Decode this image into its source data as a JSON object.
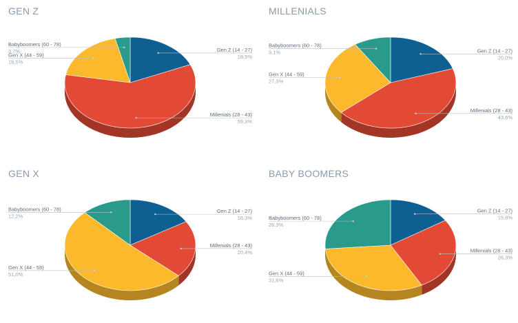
{
  "colors": {
    "gen_z": "#0e5f92",
    "millenials": "#e24a35",
    "gen_x": "#fcb92b",
    "babyboomers": "#2a9a8a"
  },
  "chart_data": [
    {
      "type": "pie",
      "title": "GEN Z",
      "categories": [
        "Gen Z (14 - 27)",
        "Millenials (28 - 43)",
        "Gen X (44 - 59)",
        "Babyboomers (60 - 78)"
      ],
      "values": [
        18.5,
        59.3,
        18.5,
        3.7
      ],
      "value_labels": [
        "18,5%",
        "59,3%",
        "18,5%",
        "3,7%"
      ]
    },
    {
      "type": "pie",
      "title": "MILLENIALS",
      "categories": [
        "Gen Z (14 - 27)",
        "Millenials (28 - 43)",
        "Gen X (44 - 59)",
        "Babyboomers (60 - 78)"
      ],
      "values": [
        20.0,
        43.6,
        27.3,
        9.1
      ],
      "value_labels": [
        "20,0%",
        "43,6%",
        "27,3%",
        "9,1%"
      ]
    },
    {
      "type": "pie",
      "title": "GEN X",
      "categories": [
        "Gen Z (14 - 27)",
        "Millenials (28 - 43)",
        "Gen X (44 - 59)",
        "Babyboomers (60 - 78)"
      ],
      "values": [
        16.3,
        20.4,
        51.0,
        12.2
      ],
      "value_labels": [
        "16,3%",
        "20,4%",
        "51,0%",
        "12,2%"
      ]
    },
    {
      "type": "pie",
      "title": "BABY BOOMERS",
      "categories": [
        "Gen Z (14 - 27)",
        "Millenials (28 - 43)",
        "Gen X (44 - 59)",
        "Babyboomers (60 - 78)"
      ],
      "values": [
        15.8,
        26.3,
        31.6,
        26.3
      ],
      "value_labels": [
        "15,8%",
        "26,3%",
        "31,6%",
        "26,3%"
      ]
    }
  ]
}
